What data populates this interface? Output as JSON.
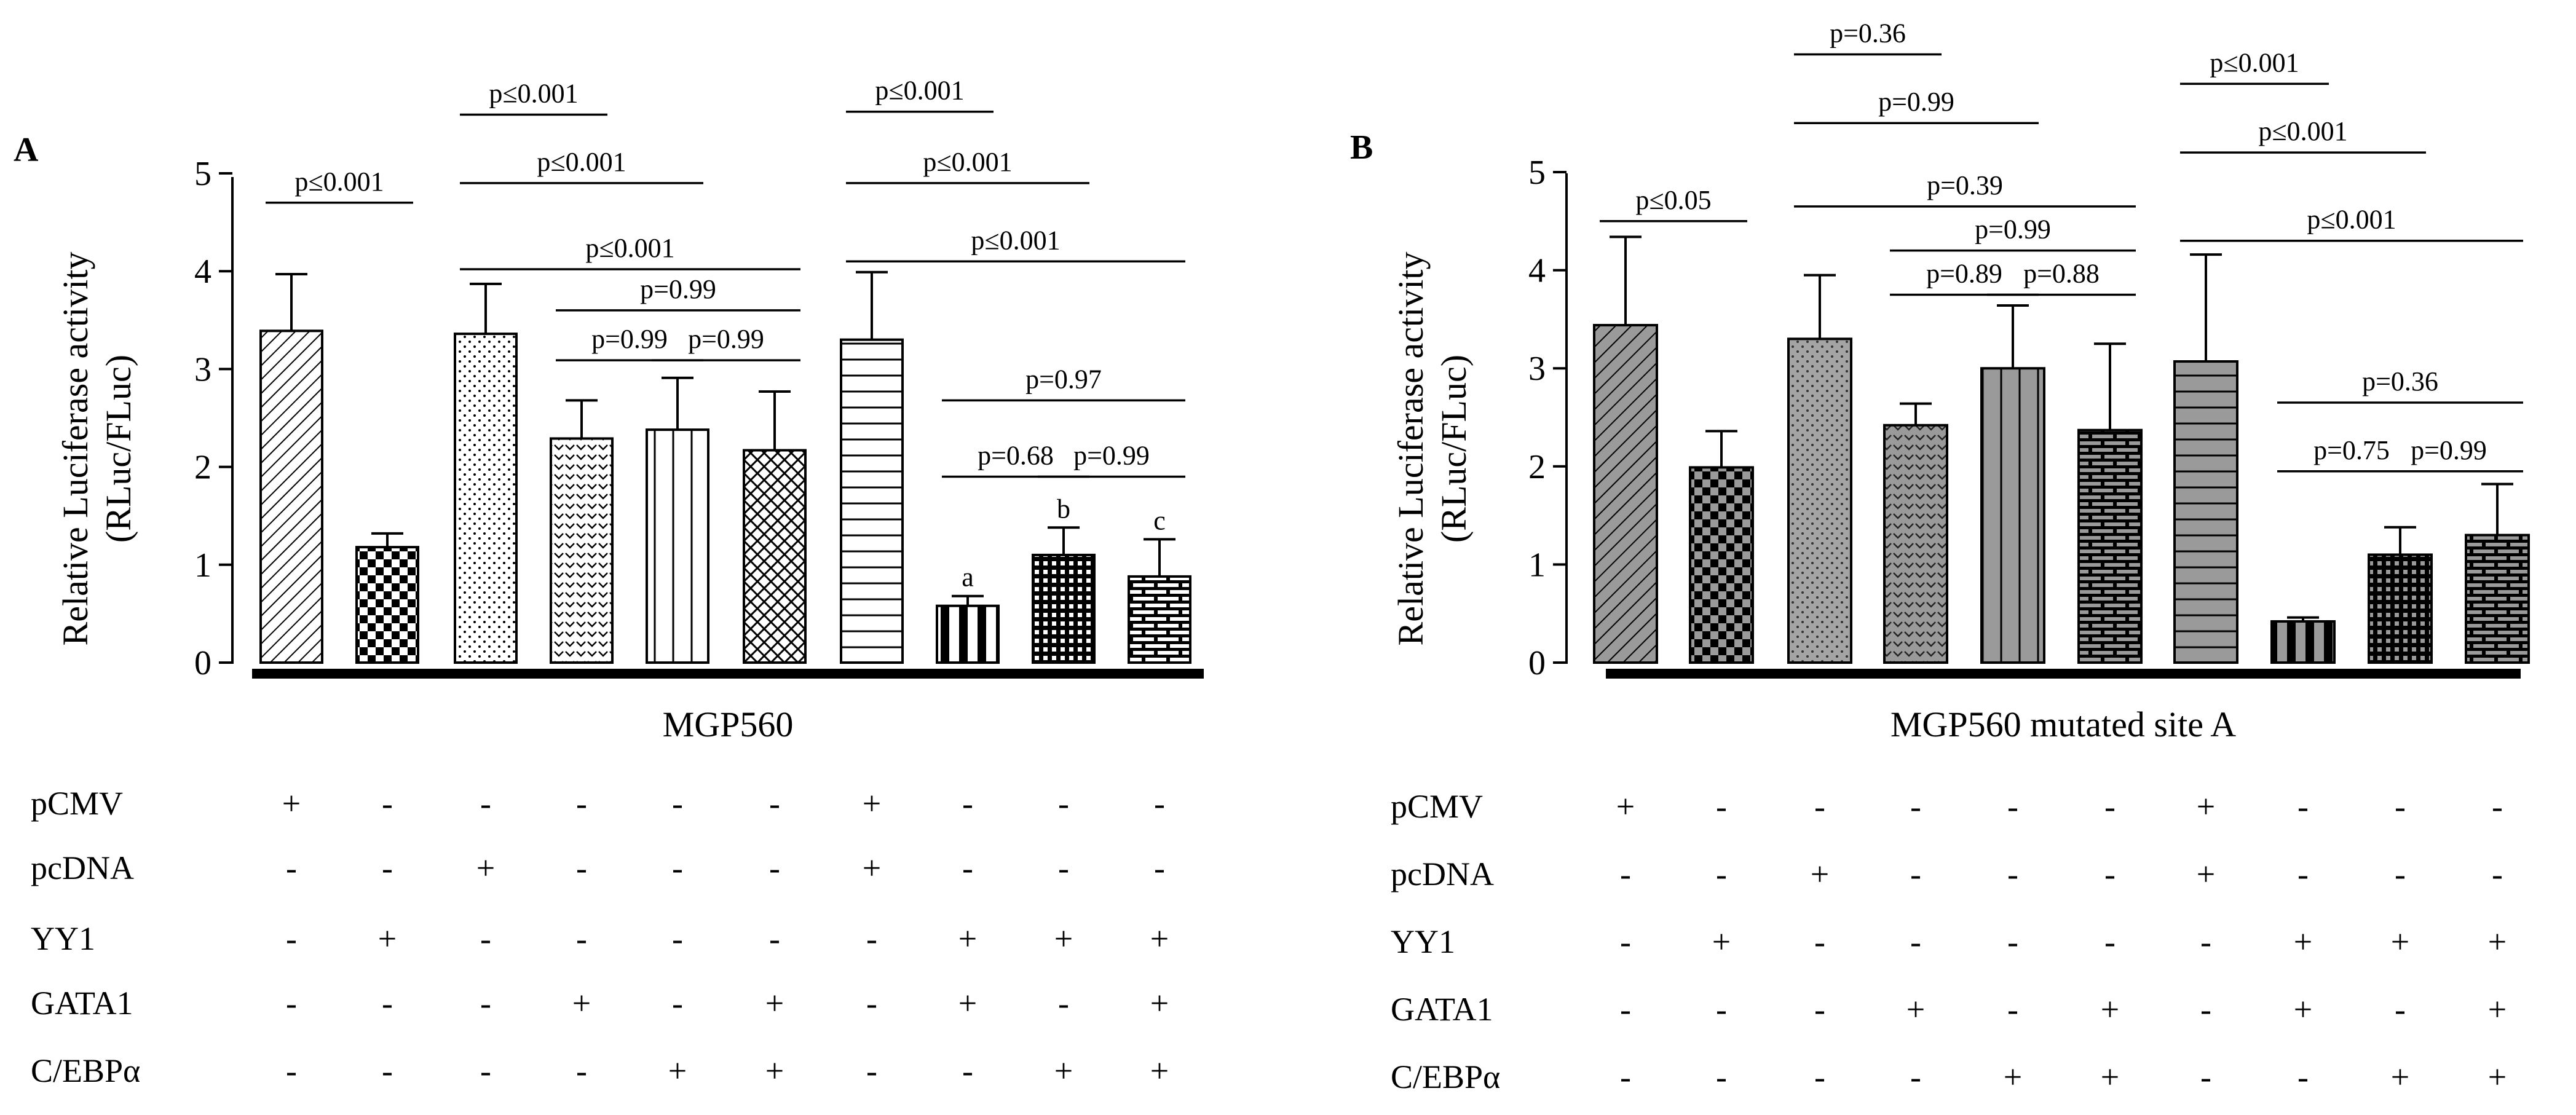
{
  "panels": [
    {
      "panel_label": "A",
      "ylabel_line1": "Relative Luciferase activity",
      "ylabel_line2": "(RLuc/FLuc)",
      "xlabel": "MGP560",
      "ylim": [
        0,
        5
      ],
      "yticks": [
        "0",
        "1",
        "2",
        "3",
        "4",
        "5"
      ],
      "bars": [
        {
          "value": 3.39,
          "error": 0.58,
          "pattern": "diag",
          "label": ""
        },
        {
          "value": 1.18,
          "error": 0.14,
          "pattern": "checker",
          "label": ""
        },
        {
          "value": 3.36,
          "error": 0.51,
          "pattern": "dots",
          "label": ""
        },
        {
          "value": 2.29,
          "error": 0.39,
          "pattern": "chevron",
          "label": ""
        },
        {
          "value": 2.38,
          "error": 0.53,
          "pattern": "vlines",
          "label": ""
        },
        {
          "value": 2.17,
          "error": 0.6,
          "pattern": "cross",
          "label": ""
        },
        {
          "value": 3.3,
          "error": 0.69,
          "pattern": "hlines",
          "label": ""
        },
        {
          "value": 0.58,
          "error": 0.1,
          "pattern": "thickv",
          "label": "a"
        },
        {
          "value": 1.1,
          "error": 0.28,
          "pattern": "grid",
          "label": "b"
        },
        {
          "value": 0.88,
          "error": 0.38,
          "pattern": "brick",
          "label": "c"
        }
      ],
      "comparisons": [
        {
          "from": 0,
          "to": 1,
          "y": 4.7,
          "text": "p≤0.001"
        },
        {
          "from": 2,
          "to": 3,
          "y": 5.6,
          "text": "p≤0.001"
        },
        {
          "from": 2,
          "to": 4,
          "y": 4.9,
          "text": "p≤0.001"
        },
        {
          "from": 2,
          "to": 5,
          "y": 4.02,
          "text": "p≤0.001"
        },
        {
          "from": 3,
          "to": 5,
          "y": 3.6,
          "text": "p=0.99"
        },
        {
          "from": 3,
          "to": 4,
          "y": 3.09,
          "text": "p=0.99"
        },
        {
          "from": 4,
          "to": 5,
          "y": 3.09,
          "text": "p=0.99"
        },
        {
          "from": 6,
          "to": 7,
          "y": 5.63,
          "text": "p≤0.001"
        },
        {
          "from": 6,
          "to": 8,
          "y": 4.9,
          "text": "p≤0.001"
        },
        {
          "from": 6,
          "to": 9,
          "y": 4.1,
          "text": "p≤0.001"
        },
        {
          "from": 7,
          "to": 9,
          "y": 2.68,
          "text": "p=0.97"
        },
        {
          "from": 7,
          "to": 8,
          "y": 1.9,
          "text": "p=0.68"
        },
        {
          "from": 8,
          "to": 9,
          "y": 1.9,
          "text": "p=0.99"
        }
      ],
      "rows": [
        {
          "name": "pCMV",
          "marks": [
            "+",
            "-",
            "-",
            "-",
            "-",
            "-",
            "+",
            "-",
            "-",
            "-"
          ]
        },
        {
          "name": "pcDNA",
          "marks": [
            "-",
            "-",
            "+",
            "-",
            "-",
            "-",
            "+",
            "-",
            "-",
            "-"
          ]
        },
        {
          "name": "YY1",
          "marks": [
            "-",
            "+",
            "-",
            "-",
            "-",
            "-",
            "-",
            "+",
            "+",
            "+"
          ]
        },
        {
          "name": "GATA1",
          "marks": [
            "-",
            "-",
            "-",
            "+",
            "-",
            "+",
            "-",
            "+",
            "-",
            "+"
          ]
        },
        {
          "name": "C/EBPα",
          "marks": [
            "-",
            "-",
            "-",
            "-",
            "+",
            "+",
            "-",
            "-",
            "+",
            "+"
          ]
        }
      ]
    },
    {
      "panel_label": "B",
      "ylabel_line1": "Relative Luciferase activity",
      "ylabel_line2": "(RLuc/FLuc)",
      "xlabel": "MGP560 mutated site A",
      "ylim": [
        0,
        5
      ],
      "yticks": [
        "0",
        "1",
        "2",
        "3",
        "4",
        "5"
      ],
      "bars": [
        {
          "value": 3.44,
          "error": 0.9,
          "pattern": "diag",
          "label": ""
        },
        {
          "value": 1.99,
          "error": 0.37,
          "pattern": "checker",
          "label": ""
        },
        {
          "value": 3.3,
          "error": 0.65,
          "pattern": "dots",
          "label": ""
        },
        {
          "value": 2.42,
          "error": 0.22,
          "pattern": "chevron",
          "label": ""
        },
        {
          "value": 3.0,
          "error": 0.64,
          "pattern": "vlines",
          "label": ""
        },
        {
          "value": 2.37,
          "error": 0.88,
          "pattern": "brick",
          "label": ""
        },
        {
          "value": 3.07,
          "error": 1.09,
          "pattern": "hlines",
          "label": ""
        },
        {
          "value": 0.42,
          "error": 0.04,
          "pattern": "thickv",
          "label": ""
        },
        {
          "value": 1.1,
          "error": 0.28,
          "pattern": "grid",
          "label": ""
        },
        {
          "value": 1.3,
          "error": 0.52,
          "pattern": "brick",
          "label": ""
        }
      ],
      "comparisons": [
        {
          "from": 0,
          "to": 1,
          "y": 4.5,
          "text": "p≤0.05"
        },
        {
          "from": 2,
          "to": 3,
          "y": 6.2,
          "text": "p=0.36"
        },
        {
          "from": 2,
          "to": 4,
          "y": 5.5,
          "text": "p=0.99"
        },
        {
          "from": 2,
          "to": 5,
          "y": 4.65,
          "text": "p=0.39"
        },
        {
          "from": 3,
          "to": 5,
          "y": 4.2,
          "text": "p=0.99"
        },
        {
          "from": 3,
          "to": 4,
          "y": 3.75,
          "text": "p=0.89"
        },
        {
          "from": 4,
          "to": 5,
          "y": 3.75,
          "text": "p=0.88"
        },
        {
          "from": 6,
          "to": 7,
          "y": 5.9,
          "text": "p≤0.001"
        },
        {
          "from": 6,
          "to": 8,
          "y": 5.2,
          "text": "p≤0.001"
        },
        {
          "from": 6,
          "to": 9,
          "y": 4.3,
          "text": "p≤0.001"
        },
        {
          "from": 7,
          "to": 9,
          "y": 2.65,
          "text": "p=0.36"
        },
        {
          "from": 7,
          "to": 8,
          "y": 1.95,
          "text": "p=0.75"
        },
        {
          "from": 8,
          "to": 9,
          "y": 1.95,
          "text": "p=0.99"
        }
      ],
      "rows": [
        {
          "name": "pCMV",
          "marks": [
            "+",
            "-",
            "-",
            "-",
            "-",
            "-",
            "+",
            "-",
            "-",
            "-"
          ]
        },
        {
          "name": "pcDNA",
          "marks": [
            "-",
            "-",
            "+",
            "-",
            "-",
            "-",
            "+",
            "-",
            "-",
            "-"
          ]
        },
        {
          "name": "YY1",
          "marks": [
            "-",
            "+",
            "-",
            "-",
            "-",
            "-",
            "-",
            "+",
            "+",
            "+"
          ]
        },
        {
          "name": "GATA1",
          "marks": [
            "-",
            "-",
            "-",
            "+",
            "-",
            "+",
            "-",
            "+",
            "-",
            "+"
          ]
        },
        {
          "name": "C/EBPα",
          "marks": [
            "-",
            "-",
            "-",
            "-",
            "+",
            "+",
            "-",
            "-",
            "+",
            "+"
          ]
        }
      ]
    }
  ],
  "chart_data": [
    {
      "type": "bar",
      "title": "A",
      "xlabel": "MGP560",
      "ylabel": "Relative Luciferase activity (RLuc/FLuc)",
      "ylim": [
        0,
        5
      ],
      "categories": [
        "pCMV",
        "YY1",
        "pcDNA",
        "GATA1",
        "C/EBPα",
        "GATA1 + C/EBPα",
        "pCMV + pcDNA",
        "YY1 + GATA1",
        "YY1 + C/EBPα",
        "YY1 + GATA1 + C/EBPα"
      ],
      "values": [
        3.39,
        1.18,
        3.36,
        2.29,
        2.38,
        2.17,
        3.3,
        0.58,
        1.1,
        0.88
      ],
      "errors": [
        0.58,
        0.14,
        0.51,
        0.39,
        0.53,
        0.6,
        0.69,
        0.1,
        0.28,
        0.38
      ]
    },
    {
      "type": "bar",
      "title": "B",
      "xlabel": "MGP560 mutated site A",
      "ylabel": "Relative Luciferase activity (RLuc/FLuc)",
      "ylim": [
        0,
        5
      ],
      "categories": [
        "pCMV",
        "YY1",
        "pcDNA",
        "GATA1",
        "C/EBPα",
        "GATA1 + C/EBPα",
        "pCMV + pcDNA",
        "YY1 + GATA1",
        "YY1 + C/EBPα",
        "YY1 + GATA1 + C/EBPα"
      ],
      "values": [
        3.44,
        1.99,
        3.3,
        2.42,
        3.0,
        2.37,
        3.07,
        0.42,
        1.1,
        1.3
      ],
      "errors": [
        0.9,
        0.37,
        0.65,
        0.22,
        0.64,
        0.88,
        1.09,
        0.04,
        0.28,
        0.52
      ]
    }
  ]
}
